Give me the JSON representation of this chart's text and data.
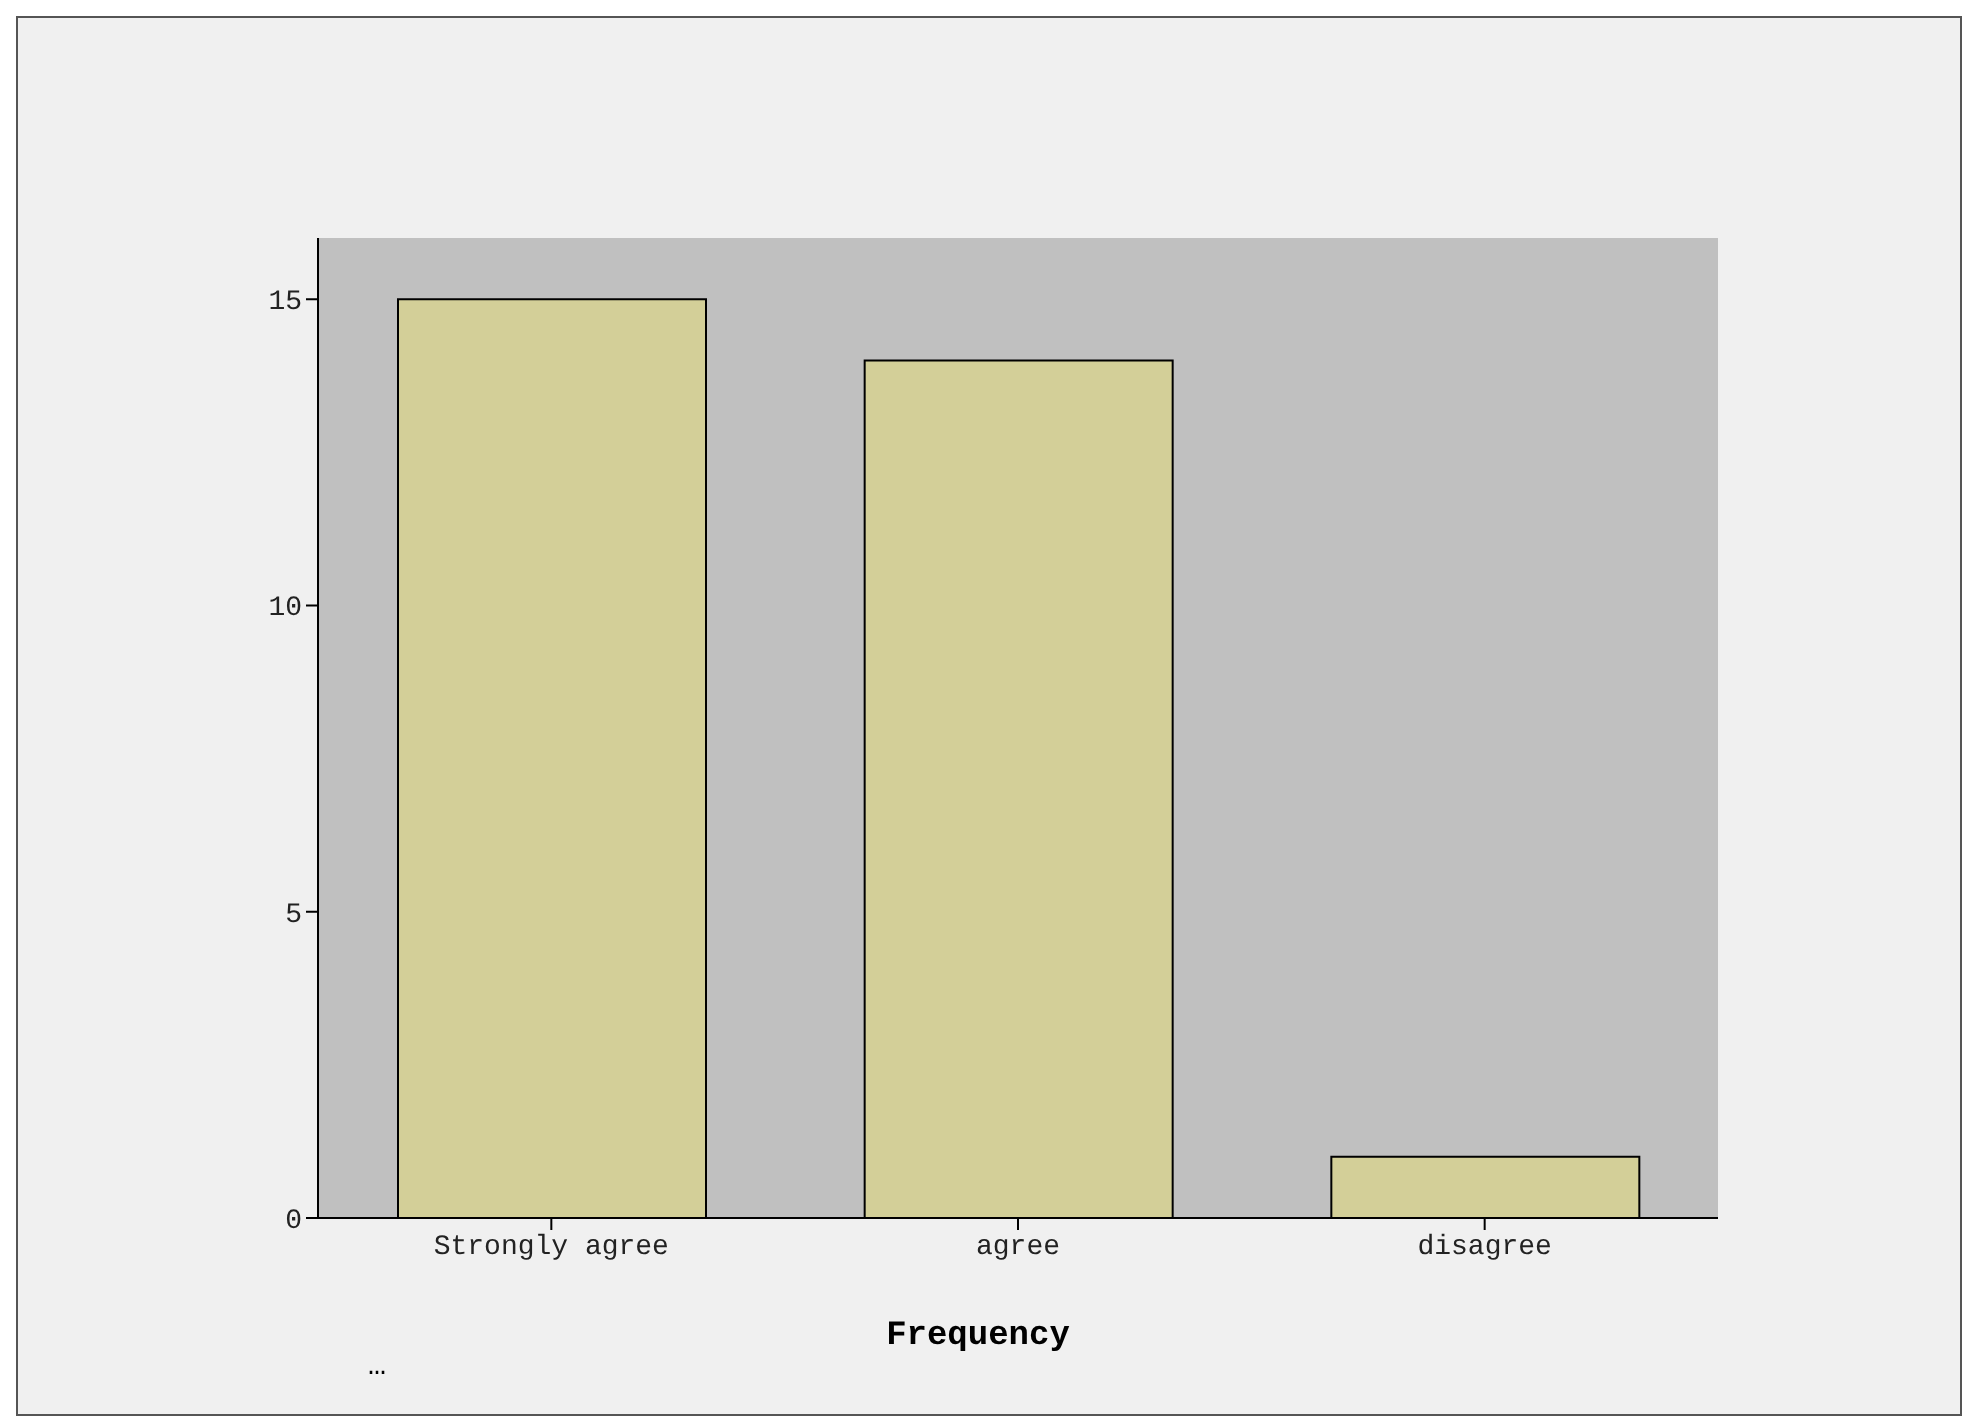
{
  "chart_data": {
    "type": "bar",
    "categories": [
      "Strongly agree",
      "agree",
      "disagree"
    ],
    "values": [
      15,
      14,
      1
    ],
    "color": "#d3cf98",
    "ylim": [
      0,
      16
    ],
    "yticks": [
      0,
      5,
      10,
      15
    ],
    "grid": false,
    "xlabel": "Frequency",
    "annotations": [
      "…"
    ]
  }
}
